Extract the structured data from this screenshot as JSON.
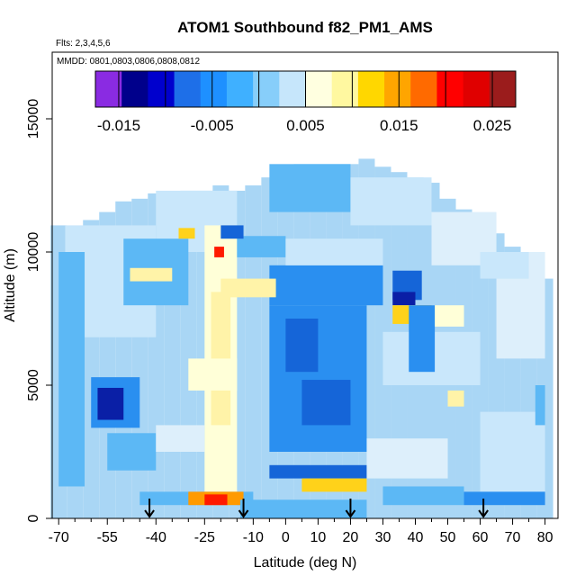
{
  "chart_data": {
    "type": "heatmap",
    "title": "ATOM1 Southbound f82_PM1_AMS",
    "flights_label": "Flts: 2,3,4,5,6",
    "dates_label": "MMDD: 0801,0803,0806,0808,0812",
    "xlabel": "Latitude (deg N)",
    "ylabel": "Altitude (m)",
    "xlim": [
      -72,
      84
    ],
    "ylim": [
      0,
      17500
    ],
    "x_ticks": [
      -70,
      -55,
      -40,
      -25,
      -10,
      0,
      10,
      20,
      30,
      40,
      50,
      60,
      70,
      80
    ],
    "x_minor_ticks": [
      -65,
      -60,
      -50,
      -45,
      -35,
      -30,
      -20,
      -15,
      -5,
      5,
      15,
      25,
      35,
      45,
      55,
      65,
      75
    ],
    "y_ticks": [
      0,
      5000,
      10000,
      15000
    ],
    "colorbar": {
      "range": [
        -0.0175,
        0.0275
      ],
      "step": 0.0025,
      "tick_values": [
        -0.015,
        -0.005,
        0.005,
        0.015,
        0.025
      ],
      "tick_labels": [
        "-0.015",
        "-0.005",
        "0.005",
        "0.015",
        "0.025"
      ],
      "colors": [
        "#8a2be2",
        "#00008b",
        "#0000cd",
        "#1e6fe8",
        "#1e90ff",
        "#3fb0ff",
        "#87cefa",
        "#c6e6fb",
        "#ffffe0",
        "#fff8a0",
        "#ffd700",
        "#ffa500",
        "#ff6a00",
        "#ff0000",
        "#e00000",
        "#9b1c1c"
      ]
    },
    "arrows_latitude": [
      -42,
      -13,
      20,
      61
    ],
    "colors": {
      "base": "#a9d6f5",
      "light": "#c9e7fb",
      "pale": "#ddeffb",
      "medium": "#5cb8f5",
      "strong": "#2a8ff0",
      "deep": "#1565d8",
      "navy": "#0a1fa6",
      "cream": "#ffffd8",
      "lightyellow": "#fff3a8",
      "gold": "#ffd21a",
      "orange": "#ff9a00",
      "red": "#ff1a00"
    },
    "envelope": [
      [
        -70,
        0,
        11000
      ],
      [
        -65,
        0,
        10600
      ],
      [
        -60,
        0,
        11200
      ],
      [
        -55,
        0,
        11500
      ],
      [
        -50,
        0,
        11900
      ],
      [
        -45,
        0,
        12000
      ],
      [
        -40,
        0,
        12200
      ],
      [
        -35,
        0,
        12100
      ],
      [
        -30,
        0,
        12300
      ],
      [
        -25,
        0,
        12300
      ],
      [
        -20,
        0,
        12500
      ],
      [
        -15,
        0,
        12300
      ],
      [
        -10,
        0,
        12500
      ],
      [
        -5,
        0,
        12800
      ],
      [
        0,
        0,
        13200
      ],
      [
        5,
        0,
        13300
      ],
      [
        10,
        0,
        13300
      ],
      [
        15,
        0,
        13300
      ],
      [
        20,
        0,
        13300
      ],
      [
        25,
        0,
        13500
      ],
      [
        30,
        0,
        13200
      ],
      [
        35,
        0,
        13000
      ],
      [
        40,
        0,
        12800
      ],
      [
        45,
        0,
        12600
      ],
      [
        50,
        0,
        12000
      ],
      [
        55,
        0,
        11600
      ],
      [
        60,
        0,
        11200
      ],
      [
        65,
        0,
        10700
      ],
      [
        70,
        0,
        10200
      ],
      [
        75,
        0,
        9800
      ],
      [
        80,
        0,
        9000
      ]
    ],
    "patches": [
      {
        "lat": [
          -68,
          -40
        ],
        "alt": [
          6800,
          11000
        ],
        "color": "light"
      },
      {
        "lat": [
          -40,
          -15
        ],
        "alt": [
          10000,
          12300
        ],
        "color": "light"
      },
      {
        "lat": [
          -5,
          20
        ],
        "alt": [
          11500,
          13300
        ],
        "color": "medium"
      },
      {
        "lat": [
          20,
          45
        ],
        "alt": [
          11000,
          12800
        ],
        "color": "light"
      },
      {
        "lat": [
          45,
          65
        ],
        "alt": [
          9500,
          11500
        ],
        "color": "pale"
      },
      {
        "lat": [
          65,
          80
        ],
        "alt": [
          6000,
          10000
        ],
        "color": "pale"
      },
      {
        "lat": [
          -70,
          -62
        ],
        "alt": [
          1200,
          10000
        ],
        "color": "medium"
      },
      {
        "lat": [
          -50,
          -30
        ],
        "alt": [
          8000,
          10500
        ],
        "color": "medium"
      },
      {
        "lat": [
          -60,
          -45
        ],
        "alt": [
          3400,
          5300
        ],
        "color": "strong"
      },
      {
        "lat": [
          -58,
          -50
        ],
        "alt": [
          3700,
          4900
        ],
        "color": "navy"
      },
      {
        "lat": [
          -55,
          -40
        ],
        "alt": [
          1800,
          3200
        ],
        "color": "medium"
      },
      {
        "lat": [
          -5,
          25
        ],
        "alt": [
          2500,
          8000
        ],
        "color": "strong"
      },
      {
        "lat": [
          5,
          20
        ],
        "alt": [
          3500,
          5200
        ],
        "color": "deep"
      },
      {
        "lat": [
          0,
          10
        ],
        "alt": [
          5500,
          7500
        ],
        "color": "deep"
      },
      {
        "lat": [
          -5,
          30
        ],
        "alt": [
          8000,
          9500
        ],
        "color": "strong"
      },
      {
        "lat": [
          -25,
          -15
        ],
        "alt": [
          500,
          11000
        ],
        "color": "cream"
      },
      {
        "lat": [
          -23,
          -17
        ],
        "alt": [
          3500,
          8500
        ],
        "color": "lightyellow"
      },
      {
        "lat": [
          -20,
          -3
        ],
        "alt": [
          8300,
          9000
        ],
        "color": "lightyellow"
      },
      {
        "lat": [
          -30,
          -15
        ],
        "alt": [
          4800,
          6000
        ],
        "color": "cream"
      },
      {
        "lat": [
          -22,
          -19
        ],
        "alt": [
          9800,
          10200
        ],
        "color": "red"
      },
      {
        "lat": [
          -33,
          -28
        ],
        "alt": [
          10500,
          10900
        ],
        "color": "gold"
      },
      {
        "lat": [
          -48,
          -35
        ],
        "alt": [
          8900,
          9400
        ],
        "color": "lightyellow"
      },
      {
        "lat": [
          33,
          42
        ],
        "alt": [
          8200,
          9300
        ],
        "color": "deep"
      },
      {
        "lat": [
          33,
          40
        ],
        "alt": [
          8000,
          8500
        ],
        "color": "navy"
      },
      {
        "lat": [
          33,
          45
        ],
        "alt": [
          7300,
          8000
        ],
        "color": "gold"
      },
      {
        "lat": [
          45,
          55
        ],
        "alt": [
          7200,
          8000
        ],
        "color": "cream"
      },
      {
        "lat": [
          -15,
          0
        ],
        "alt": [
          9800,
          10600
        ],
        "color": "medium"
      },
      {
        "lat": [
          -20,
          -13
        ],
        "alt": [
          10500,
          11000
        ],
        "color": "deep"
      },
      {
        "lat": [
          30,
          60
        ],
        "alt": [
          5000,
          7000
        ],
        "color": "light"
      },
      {
        "lat": [
          50,
          55
        ],
        "alt": [
          4200,
          4800
        ],
        "color": "lightyellow"
      },
      {
        "lat": [
          60,
          80
        ],
        "alt": [
          1000,
          4000
        ],
        "color": "light"
      },
      {
        "lat": [
          -5,
          25
        ],
        "alt": [
          1500,
          2000
        ],
        "color": "deep"
      },
      {
        "lat": [
          5,
          25
        ],
        "alt": [
          1000,
          1500
        ],
        "color": "gold"
      },
      {
        "lat": [
          -45,
          -10
        ],
        "alt": [
          500,
          1000
        ],
        "color": "medium"
      },
      {
        "lat": [
          -30,
          -13
        ],
        "alt": [
          500,
          1000
        ],
        "color": "orange"
      },
      {
        "lat": [
          -25,
          -18
        ],
        "alt": [
          500,
          900
        ],
        "color": "red"
      },
      {
        "lat": [
          -14,
          25
        ],
        "alt": [
          0,
          700
        ],
        "color": "medium"
      },
      {
        "lat": [
          25,
          50
        ],
        "alt": [
          1500,
          3000
        ],
        "color": "pale"
      },
      {
        "lat": [
          30,
          55
        ],
        "alt": [
          500,
          1200
        ],
        "color": "medium"
      },
      {
        "lat": [
          55,
          80
        ],
        "alt": [
          500,
          1000
        ],
        "color": "strong"
      },
      {
        "lat": [
          -40,
          -25
        ],
        "alt": [
          2500,
          3500
        ],
        "color": "pale"
      },
      {
        "lat": [
          60,
          75
        ],
        "alt": [
          9000,
          10000
        ],
        "color": "light"
      },
      {
        "lat": [
          0,
          30
        ],
        "alt": [
          9500,
          10500
        ],
        "color": "light"
      },
      {
        "lat": [
          38,
          46
        ],
        "alt": [
          5500,
          8000
        ],
        "color": "strong"
      },
      {
        "lat": [
          77,
          80
        ],
        "alt": [
          3500,
          5000
        ],
        "color": "medium"
      }
    ]
  }
}
